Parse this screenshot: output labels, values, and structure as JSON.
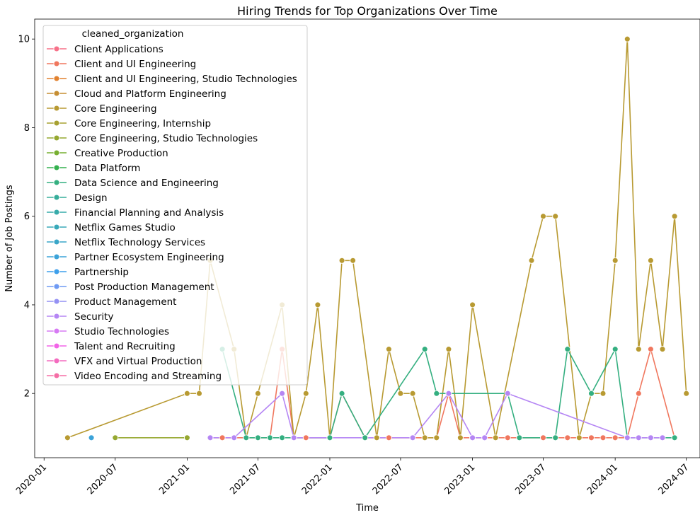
{
  "chart_data": {
    "type": "line",
    "title": "Hiring Trends for Top Organizations Over Time",
    "xlabel": "Time",
    "ylabel": "Number of Job Postings",
    "xlim": [
      "2019-12-08",
      "2024-08-05"
    ],
    "ylim": [
      0.55,
      10.45
    ],
    "x_ticks": [
      "2020-01-01",
      "2020-07-01",
      "2021-01-01",
      "2021-07-01",
      "2022-01-01",
      "2022-07-01",
      "2023-01-01",
      "2023-07-01",
      "2024-01-01",
      "2024-07-01"
    ],
    "x_tick_labels": [
      "2020-01",
      "2020-07",
      "2021-01",
      "2021-07",
      "2022-01",
      "2022-07",
      "2023-01",
      "2023-07",
      "2024-01",
      "2024-07"
    ],
    "y_ticks": [
      2,
      4,
      6,
      8,
      10
    ],
    "y_tick_labels": [
      "2",
      "4",
      "6",
      "8",
      "10"
    ],
    "legend": {
      "title": "cleaned_organization",
      "placement": "upper-left"
    },
    "series": [
      {
        "name": "Client Applications",
        "color": "#f77189",
        "points": []
      },
      {
        "name": "Client and UI Engineering",
        "color": "#f0775e",
        "points": [
          {
            "x": "2021-03-01",
            "y": 1
          },
          {
            "x": "2021-04-01",
            "y": 1
          },
          {
            "x": "2021-05-01",
            "y": 1
          },
          {
            "x": "2021-06-01",
            "y": 1
          },
          {
            "x": "2021-07-01",
            "y": 1
          },
          {
            "x": "2021-08-01",
            "y": 1
          },
          {
            "x": "2021-09-01",
            "y": 3
          },
          {
            "x": "2021-10-01",
            "y": 1
          },
          {
            "x": "2021-11-01",
            "y": 1
          },
          {
            "x": "2022-01-01",
            "y": 1
          },
          {
            "x": "2022-02-01",
            "y": 2
          },
          {
            "x": "2022-04-01",
            "y": 1
          },
          {
            "x": "2022-05-01",
            "y": 1
          },
          {
            "x": "2022-06-01",
            "y": 1
          },
          {
            "x": "2022-08-01",
            "y": 1
          },
          {
            "x": "2022-09-01",
            "y": 1
          },
          {
            "x": "2022-10-01",
            "y": 1
          },
          {
            "x": "2022-11-01",
            "y": 2
          },
          {
            "x": "2022-12-01",
            "y": 1
          },
          {
            "x": "2023-01-01",
            "y": 1
          },
          {
            "x": "2023-02-01",
            "y": 1
          },
          {
            "x": "2023-03-01",
            "y": 1
          },
          {
            "x": "2023-04-01",
            "y": 1
          },
          {
            "x": "2023-05-01",
            "y": 1
          },
          {
            "x": "2023-07-01",
            "y": 1
          },
          {
            "x": "2023-08-01",
            "y": 1
          },
          {
            "x": "2023-09-01",
            "y": 1
          },
          {
            "x": "2023-10-01",
            "y": 1
          },
          {
            "x": "2023-11-01",
            "y": 1
          },
          {
            "x": "2023-12-01",
            "y": 1
          },
          {
            "x": "2024-01-01",
            "y": 1
          },
          {
            "x": "2024-02-01",
            "y": 1
          },
          {
            "x": "2024-03-01",
            "y": 2
          },
          {
            "x": "2024-04-01",
            "y": 3
          },
          {
            "x": "2024-06-01",
            "y": 1
          }
        ]
      },
      {
        "name": "Client and UI Engineering, Studio Technologies",
        "color": "#e2812e",
        "points": []
      },
      {
        "name": "Cloud and Platform Engineering",
        "color": "#c68e32",
        "points": []
      },
      {
        "name": "Core Engineering",
        "color": "#b89a32",
        "points": [
          {
            "x": "2020-03-01",
            "y": 1
          },
          {
            "x": "2021-01-01",
            "y": 2
          },
          {
            "x": "2021-02-01",
            "y": 2
          },
          {
            "x": "2021-03-01",
            "y": 5
          },
          {
            "x": "2021-05-01",
            "y": 3
          },
          {
            "x": "2021-06-01",
            "y": 1
          },
          {
            "x": "2021-07-01",
            "y": 2
          },
          {
            "x": "2021-09-01",
            "y": 4
          },
          {
            "x": "2021-10-01",
            "y": 1
          },
          {
            "x": "2021-11-01",
            "y": 2
          },
          {
            "x": "2021-12-01",
            "y": 4
          },
          {
            "x": "2022-01-01",
            "y": 1
          },
          {
            "x": "2022-02-01",
            "y": 5
          },
          {
            "x": "2022-03-01",
            "y": 5
          },
          {
            "x": "2022-05-01",
            "y": 1
          },
          {
            "x": "2022-06-01",
            "y": 3
          },
          {
            "x": "2022-07-01",
            "y": 2
          },
          {
            "x": "2022-08-01",
            "y": 2
          },
          {
            "x": "2022-09-01",
            "y": 1
          },
          {
            "x": "2022-10-01",
            "y": 1
          },
          {
            "x": "2022-11-01",
            "y": 3
          },
          {
            "x": "2022-12-01",
            "y": 1
          },
          {
            "x": "2023-01-01",
            "y": 4
          },
          {
            "x": "2023-03-01",
            "y": 1
          },
          {
            "x": "2023-06-01",
            "y": 5
          },
          {
            "x": "2023-07-01",
            "y": 6
          },
          {
            "x": "2023-08-01",
            "y": 6
          },
          {
            "x": "2023-10-01",
            "y": 1
          },
          {
            "x": "2023-11-01",
            "y": 2
          },
          {
            "x": "2023-12-01",
            "y": 2
          },
          {
            "x": "2024-01-01",
            "y": 5
          },
          {
            "x": "2024-02-01",
            "y": 10
          },
          {
            "x": "2024-03-01",
            "y": 3
          },
          {
            "x": "2024-04-01",
            "y": 5
          },
          {
            "x": "2024-05-01",
            "y": 3
          },
          {
            "x": "2024-06-01",
            "y": 6
          },
          {
            "x": "2024-07-01",
            "y": 2
          }
        ]
      },
      {
        "name": "Core Engineering, Internship",
        "color": "#a7a031",
        "points": []
      },
      {
        "name": "Core Engineering, Studio Technologies",
        "color": "#96a831",
        "points": [
          {
            "x": "2020-07-01",
            "y": 1
          },
          {
            "x": "2021-01-01",
            "y": 1
          }
        ]
      },
      {
        "name": "Creative Production",
        "color": "#77af31",
        "points": []
      },
      {
        "name": "Data Platform",
        "color": "#34b14f",
        "points": []
      },
      {
        "name": "Data Science and Engineering",
        "color": "#34af80",
        "points": [
          {
            "x": "2021-04-01",
            "y": 3
          },
          {
            "x": "2021-06-01",
            "y": 1
          },
          {
            "x": "2021-07-01",
            "y": 1
          },
          {
            "x": "2021-08-01",
            "y": 1
          },
          {
            "x": "2021-09-01",
            "y": 1
          },
          {
            "x": "2021-10-01",
            "y": 1
          },
          {
            "x": "2022-01-01",
            "y": 1
          },
          {
            "x": "2022-02-01",
            "y": 2
          },
          {
            "x": "2022-04-01",
            "y": 1
          },
          {
            "x": "2022-09-01",
            "y": 3
          },
          {
            "x": "2022-10-01",
            "y": 2
          },
          {
            "x": "2023-04-01",
            "y": 2
          },
          {
            "x": "2023-05-01",
            "y": 1
          },
          {
            "x": "2023-08-01",
            "y": 1
          },
          {
            "x": "2023-09-01",
            "y": 3
          },
          {
            "x": "2023-11-01",
            "y": 2
          },
          {
            "x": "2024-01-01",
            "y": 3
          },
          {
            "x": "2024-02-01",
            "y": 1
          },
          {
            "x": "2024-06-01",
            "y": 1
          }
        ]
      },
      {
        "name": "Design",
        "color": "#36ad9a",
        "points": []
      },
      {
        "name": "Financial Planning and Analysis",
        "color": "#37abaa",
        "points": []
      },
      {
        "name": "Netflix Games Studio",
        "color": "#38a9b9",
        "points": []
      },
      {
        "name": "Netflix Technology Services",
        "color": "#3aa6c8",
        "points": []
      },
      {
        "name": "Partner Ecosystem Engineering",
        "color": "#3ba3d9",
        "points": [
          {
            "x": "2020-05-01",
            "y": 1
          }
        ]
      },
      {
        "name": "Partnership",
        "color": "#3d9feb",
        "points": []
      },
      {
        "name": "Post Production Management",
        "color": "#6e9af4",
        "points": []
      },
      {
        "name": "Product Management",
        "color": "#9491f4",
        "points": []
      },
      {
        "name": "Security",
        "color": "#b586f4",
        "points": [
          {
            "x": "2021-03-01",
            "y": 1
          },
          {
            "x": "2021-05-01",
            "y": 1
          },
          {
            "x": "2021-09-01",
            "y": 2
          },
          {
            "x": "2021-10-01",
            "y": 1
          },
          {
            "x": "2022-08-01",
            "y": 1
          },
          {
            "x": "2022-11-01",
            "y": 2
          },
          {
            "x": "2023-01-01",
            "y": 1
          },
          {
            "x": "2023-02-01",
            "y": 1
          },
          {
            "x": "2023-04-01",
            "y": 2
          },
          {
            "x": "2024-02-01",
            "y": 1
          },
          {
            "x": "2024-03-01",
            "y": 1
          },
          {
            "x": "2024-04-01",
            "y": 1
          },
          {
            "x": "2024-05-01",
            "y": 1
          }
        ]
      },
      {
        "name": "Studio Technologies",
        "color": "#d77af4",
        "points": []
      },
      {
        "name": "Talent and Recruiting",
        "color": "#f264e7",
        "points": []
      },
      {
        "name": "VFX and Virtual Production",
        "color": "#f46bbf",
        "points": []
      },
      {
        "name": "Video Encoding and Streaming",
        "color": "#f56ea5",
        "points": []
      }
    ]
  }
}
